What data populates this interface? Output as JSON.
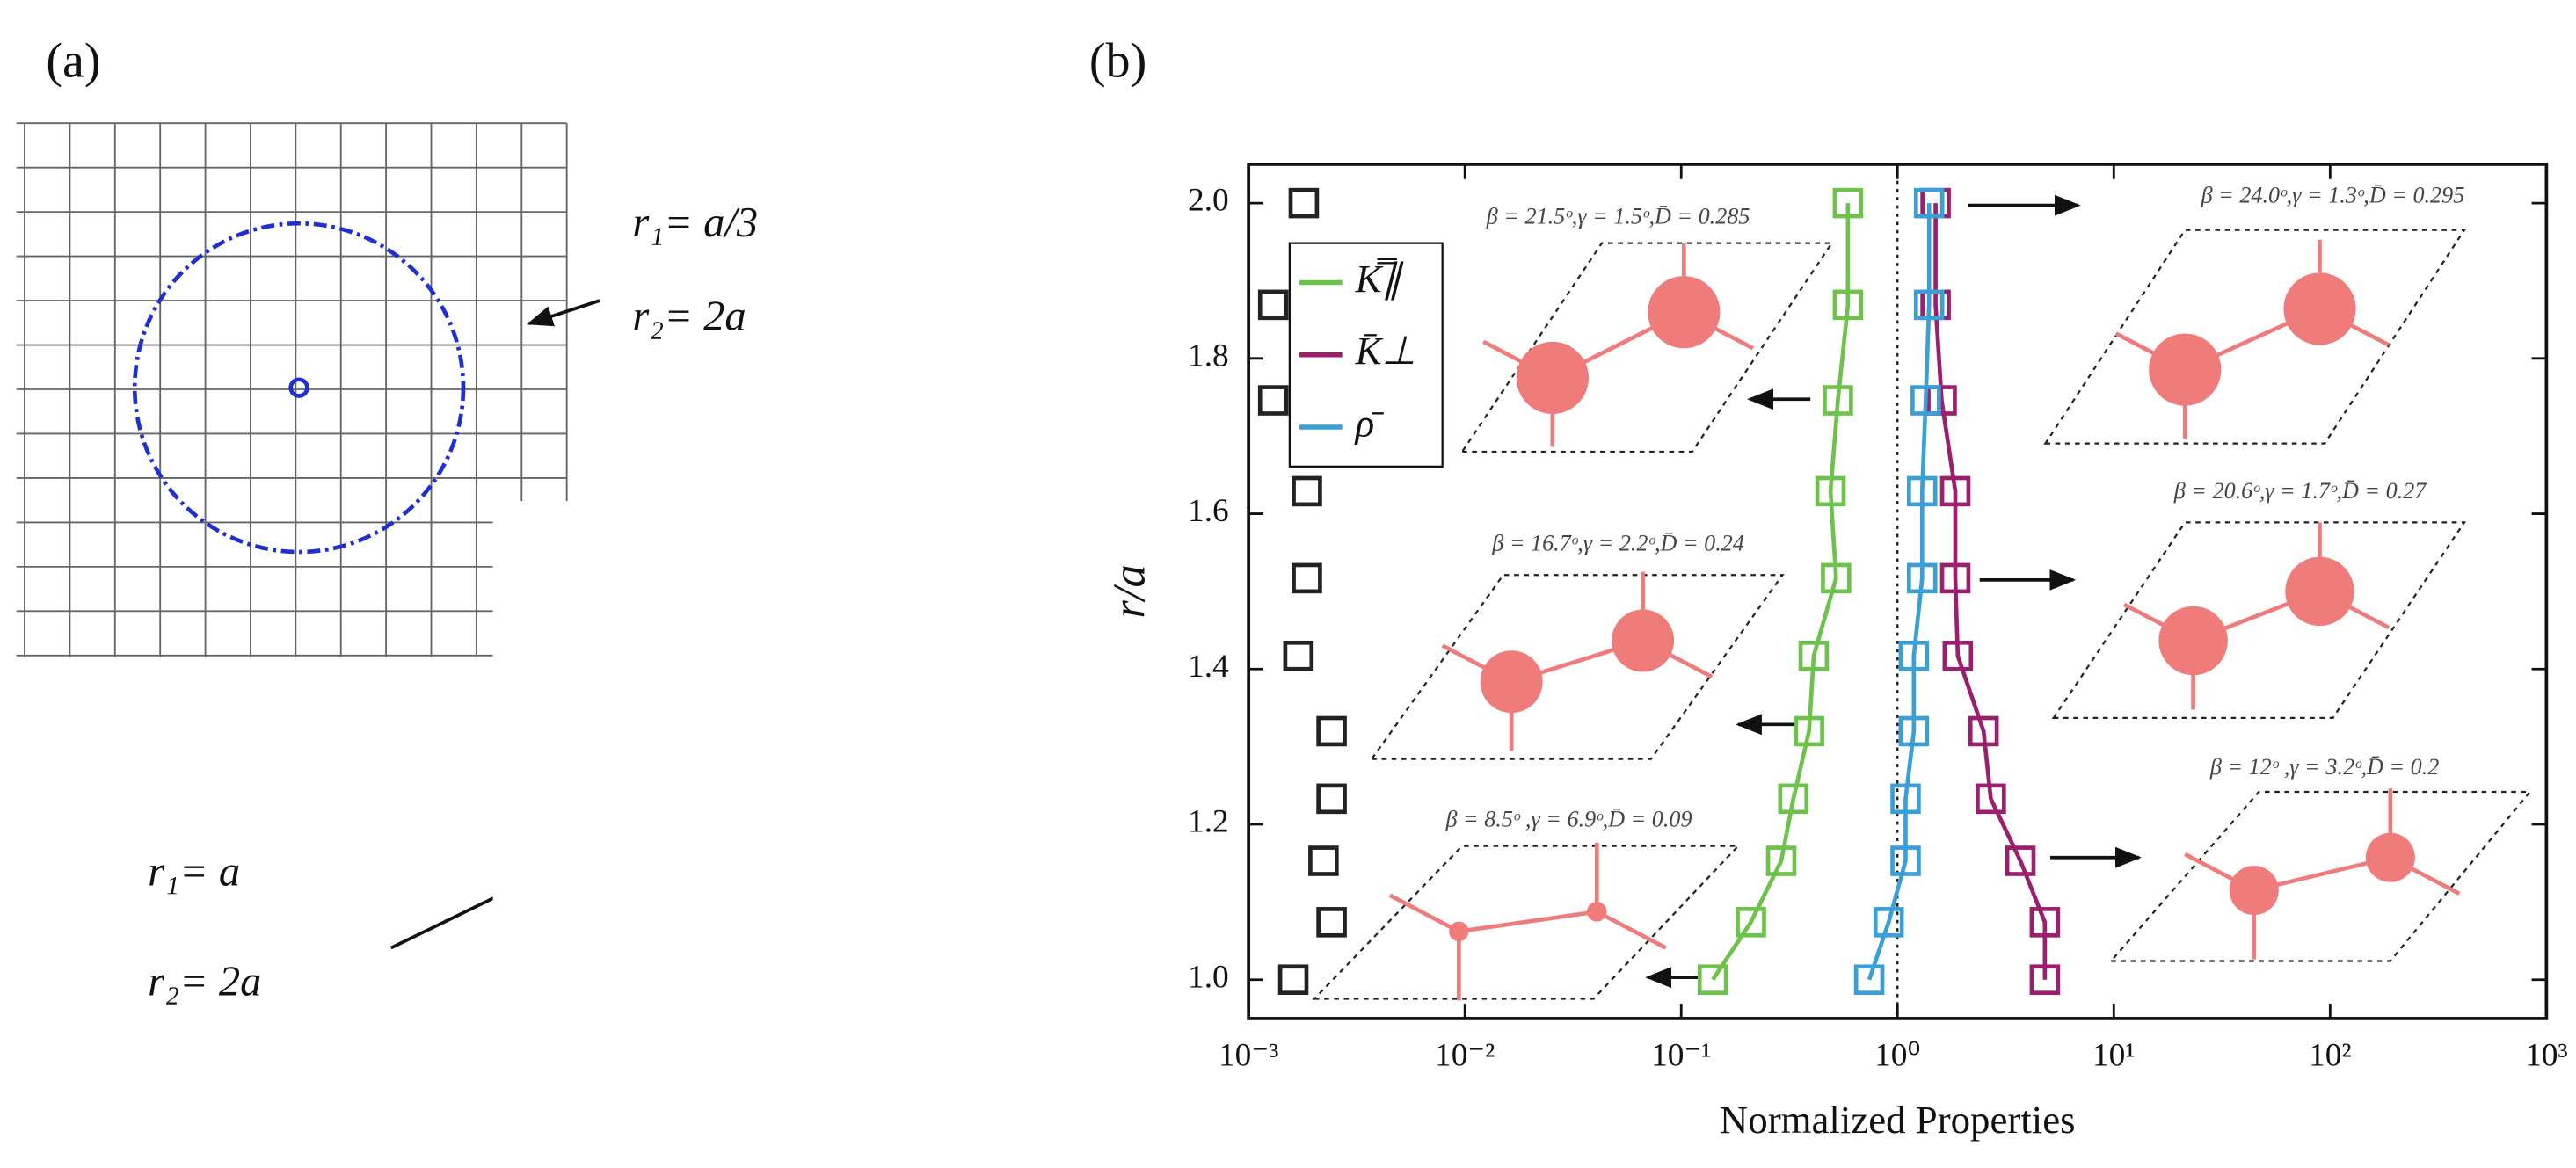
{
  "panels": {
    "a": "(a)",
    "b": "(b)"
  },
  "diagram_top": {
    "r1": "r₁= a/3",
    "r2": "r₂= 2a"
  },
  "diagram_bottom": {
    "r1": "r₁= a",
    "r2": "r₂= 2a"
  },
  "chart_data": {
    "type": "scatter",
    "x_label": "Normalized Properties",
    "y_label": "r/a",
    "log_x": true,
    "xlim": [
      0.001,
      1000
    ],
    "ylim": [
      0.95,
      2.05
    ],
    "xticks": [
      {
        "value": 0.001,
        "label": "10⁻³"
      },
      {
        "value": 0.01,
        "label": "10⁻²"
      },
      {
        "value": 0.1,
        "label": "10⁻¹"
      },
      {
        "value": 1,
        "label": "10⁰"
      },
      {
        "value": 10,
        "label": "10¹"
      },
      {
        "value": 100,
        "label": "10²"
      },
      {
        "value": 1000,
        "label": "10³"
      }
    ],
    "yticks": [
      {
        "value": 1,
        "label": "1.0"
      },
      1.2,
      1.4,
      1.6,
      1.8,
      {
        "value": 2,
        "label": "2.0"
      }
    ],
    "legend": "upper left",
    "reference_x": 1,
    "series": [
      {
        "color": "#222222",
        "line": false,
        "x": [
          0.00161,
          0.00242,
          0.00222,
          0.00242,
          0.00242,
          0.0017,
          0.00186,
          0.00186,
          0.0013,
          0.0013,
          0.0018
        ],
        "values": [
          1.0,
          1.074,
          1.153,
          1.233,
          1.32,
          1.417,
          1.517,
          1.629,
          1.746,
          1.869,
          2.0
        ]
      },
      {
        "name": "K̿∥",
        "color": "#6cc24a",
        "line": true,
        "x": [
          0.14,
          0.21,
          0.29,
          0.33,
          0.39,
          0.41,
          0.52,
          0.49,
          0.53,
          0.59,
          0.59
        ],
        "values": [
          1.0,
          1.074,
          1.153,
          1.233,
          1.32,
          1.417,
          1.517,
          1.629,
          1.746,
          1.869,
          2.0
        ]
      },
      {
        "name": "K̄⊥",
        "color": "#9b1f6e",
        "line": true,
        "x": [
          4.8,
          4.8,
          3.7,
          2.7,
          2.5,
          1.9,
          1.85,
          1.85,
          1.6,
          1.5,
          1.5
        ],
        "values": [
          1.0,
          1.074,
          1.153,
          1.233,
          1.32,
          1.417,
          1.517,
          1.629,
          1.746,
          1.869,
          2.0
        ]
      },
      {
        "name": "ρ̄",
        "color": "#3a9fd6",
        "line": true,
        "x": [
          0.74,
          0.91,
          1.09,
          1.09,
          1.19,
          1.19,
          1.3,
          1.3,
          1.35,
          1.4,
          1.4
        ],
        "values": [
          1.0,
          1.074,
          1.153,
          1.233,
          1.32,
          1.417,
          1.517,
          1.629,
          1.746,
          1.869,
          2.0
        ]
      }
    ],
    "annotations": [
      "β = 21.5ᵒ,γ = 1.5ᵒ,D̄ = 0.285",
      "β = 16.7ᵒ,γ = 2.2ᵒ,D̄ = 0.24",
      "β = 8.5ᵒ  ,γ = 6.9ᵒ,D̄ = 0.09",
      "β = 24.0ᵒ,γ = 1.3ᵒ,D̄ = 0.295",
      "β = 20.6ᵒ,γ = 1.7ᵒ,D̄ = 0.27",
      "β = 12ᵒ    ,γ = 3.2ᵒ,D̄ = 0.2"
    ]
  }
}
